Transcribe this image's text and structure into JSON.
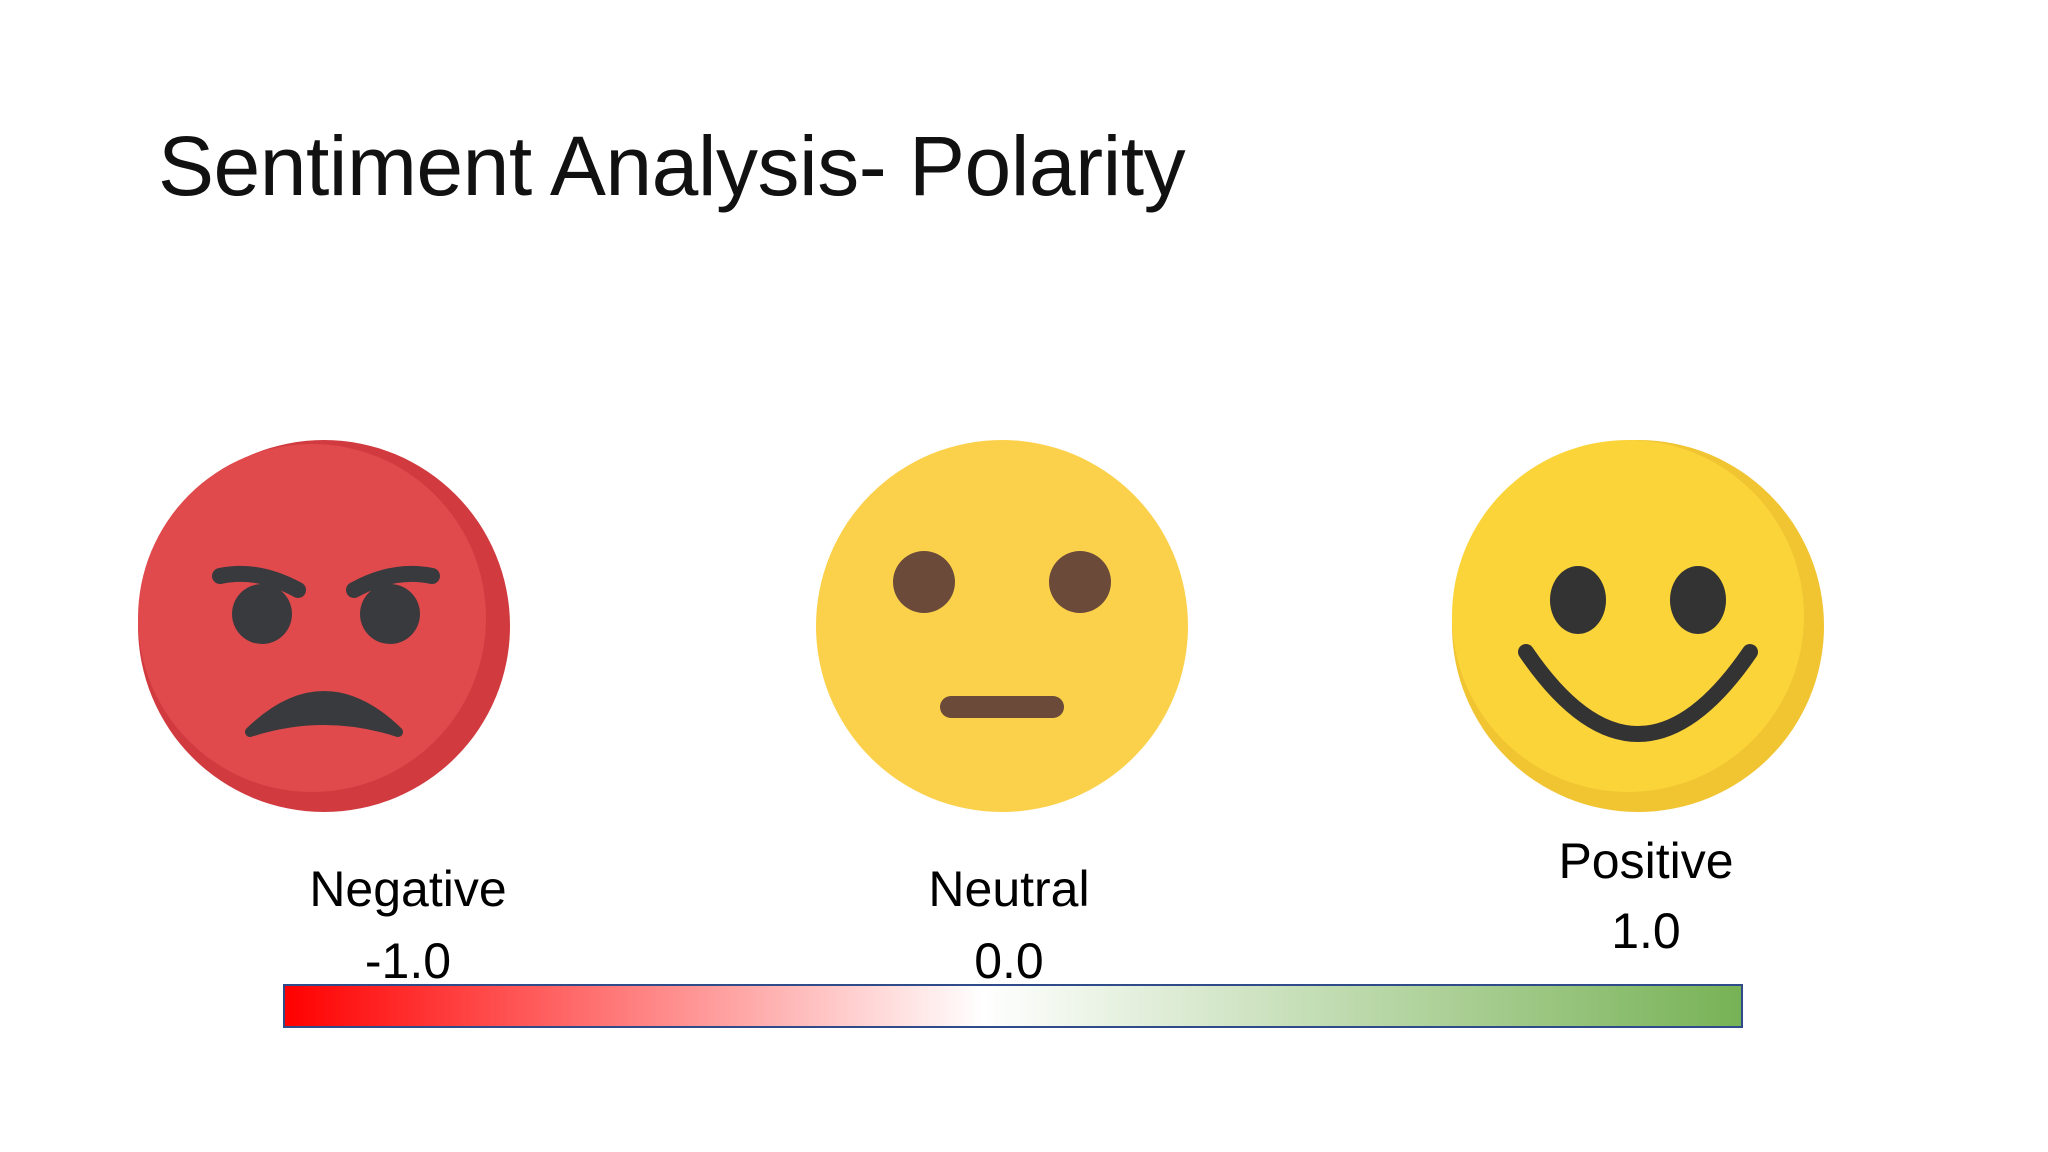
{
  "title": "Sentiment Analysis- Polarity",
  "polarity": [
    {
      "label": "Negative",
      "value": "-1.0",
      "icon": "angry-face-icon",
      "color": "#e04a4d"
    },
    {
      "label": "Neutral",
      "value": "0.0",
      "icon": "neutral-face-icon",
      "color": "#fbd14b"
    },
    {
      "label": "Positive",
      "value": "1.0",
      "icon": "smiling-face-icon",
      "color": "#fbd43a"
    }
  ],
  "scale": {
    "min": "-1.0",
    "mid": "0.0",
    "max": "1.0",
    "colors": {
      "negative": "#ff0000",
      "neutral": "#ffffff",
      "positive": "#77b255",
      "border": "#2f4b8a"
    }
  }
}
